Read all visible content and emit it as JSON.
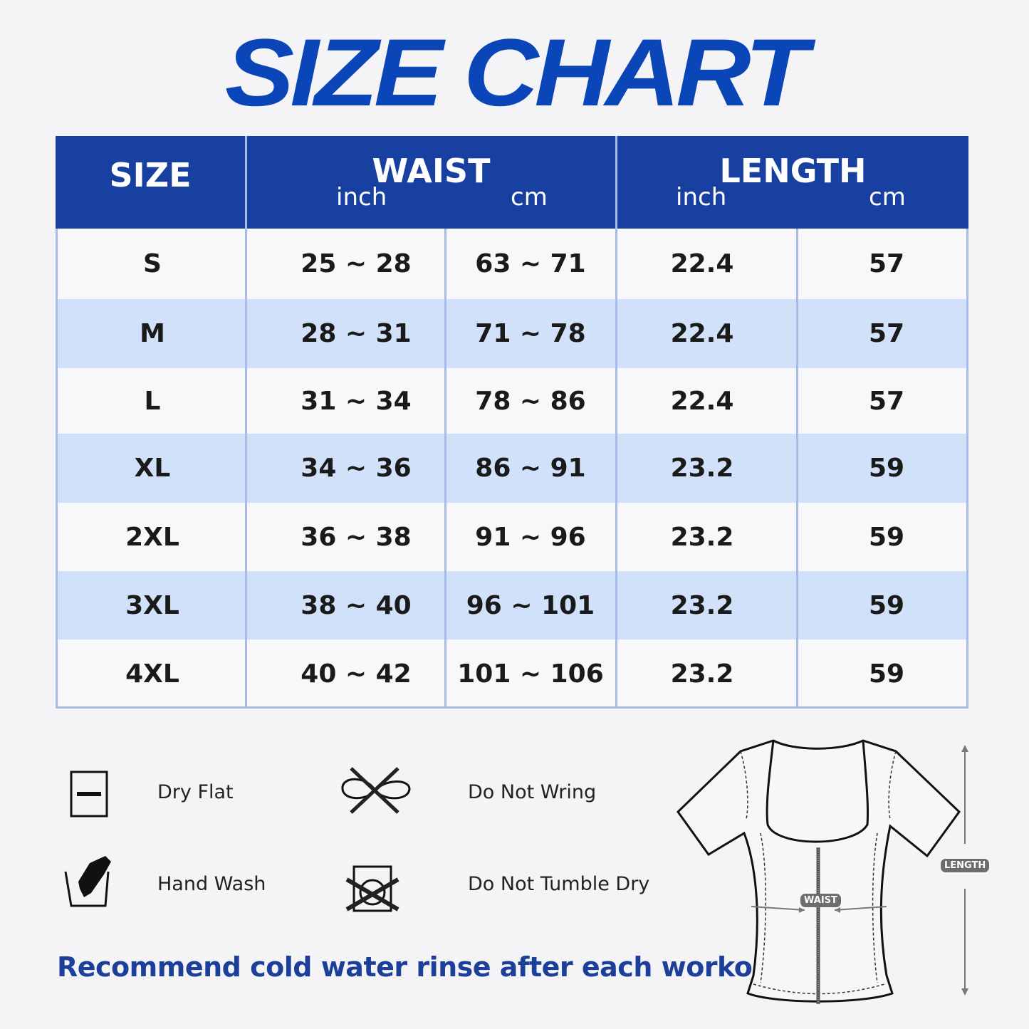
{
  "title": "SIZE CHART",
  "table": {
    "headers": {
      "size": "SIZE",
      "waist": "WAIST",
      "length": "LENGTH",
      "inch": "inch",
      "cm": "cm"
    },
    "rows": [
      {
        "size": "S",
        "waist_inch": "25 ~ 28",
        "waist_cm": "63 ~ 71",
        "length_inch": "22.4",
        "length_cm": "57"
      },
      {
        "size": "M",
        "waist_inch": "28 ~ 31",
        "waist_cm": "71 ~ 78",
        "length_inch": "22.4",
        "length_cm": "57"
      },
      {
        "size": "L",
        "waist_inch": "31 ~ 34",
        "waist_cm": "78 ~ 86",
        "length_inch": "22.4",
        "length_cm": "57"
      },
      {
        "size": "XL",
        "waist_inch": "34 ~ 36",
        "waist_cm": "86 ~ 91",
        "length_inch": "23.2",
        "length_cm": "59"
      },
      {
        "size": "2XL",
        "waist_inch": "36 ~ 38",
        "waist_cm": "91 ~ 96",
        "length_inch": "23.2",
        "length_cm": "59"
      },
      {
        "size": "3XL",
        "waist_inch": "38 ~ 40",
        "waist_cm": "96 ~ 101",
        "length_inch": "23.2",
        "length_cm": "59"
      },
      {
        "size": "4XL",
        "waist_inch": "40 ~ 42",
        "waist_cm": "101 ~ 106",
        "length_inch": "23.2",
        "length_cm": "59"
      }
    ]
  },
  "care": {
    "dry_flat": "Dry Flat",
    "do_not_wring": "Do Not Wring",
    "hand_wash": "Hand Wash",
    "do_not_tumble_dry": "Do Not Tumble Dry"
  },
  "note": "Recommend cold water rinse after each workout.",
  "diagram": {
    "waist_label": "WAIST",
    "length_label": "LENGTH"
  },
  "colors": {
    "header": "#1840a0",
    "title": "#0b46b8",
    "stripe": "#d0e1f9",
    "note": "#1c3f9a"
  }
}
